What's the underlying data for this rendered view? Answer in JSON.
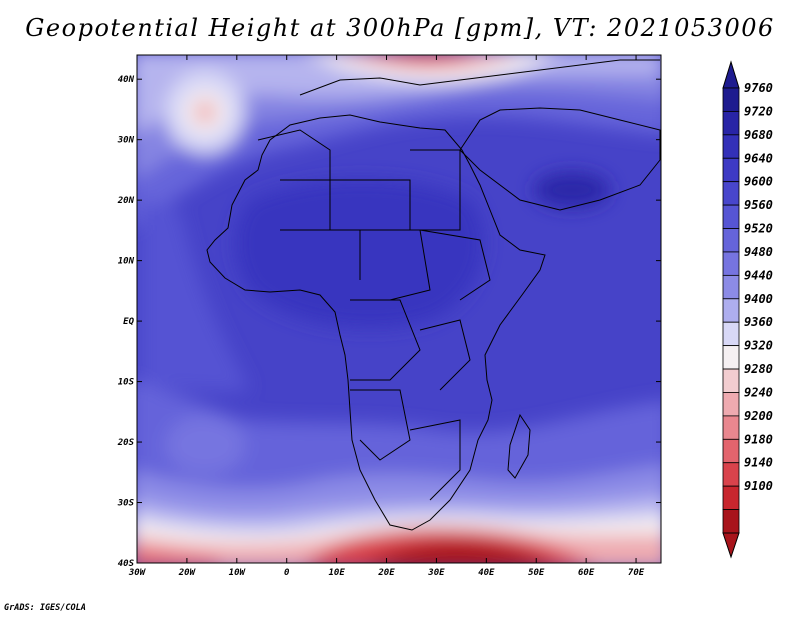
{
  "title": "Geopotential Height at 300hPa [gpm], VT: 2021053006",
  "credit": "GrADS: IGES/COLA",
  "map": {
    "lon_ticks": [
      "30W",
      "20W",
      "10W",
      "0",
      "10E",
      "20E",
      "30E",
      "40E",
      "50E",
      "60E",
      "70E"
    ],
    "lat_ticks": [
      "40N",
      "30N",
      "20N",
      "10N",
      "EQ",
      "10S",
      "20S",
      "30S",
      "40S"
    ],
    "lon_range": [
      -30,
      75
    ],
    "lat_range": [
      -40,
      44
    ]
  },
  "legend": {
    "labels": [
      "9760",
      "9720",
      "9680",
      "9640",
      "9600",
      "9560",
      "9520",
      "9480",
      "9440",
      "9400",
      "9360",
      "9320",
      "9280",
      "9240",
      "9200",
      "9180",
      "9140",
      "9100"
    ],
    "colors": [
      "#1e1b8f",
      "#2824a6",
      "#3330b8",
      "#3d3ac4",
      "#4846cc",
      "#5655d4",
      "#6564da",
      "#7674e0",
      "#8c8be6",
      "#aeaeee",
      "#d8d8f6",
      "#f5f0f2",
      "#f2cdd0",
      "#eeaab0",
      "#e9878f",
      "#e3646d",
      "#d9434c",
      "#c8262e",
      "#a8141b"
    ]
  },
  "chart_data": {
    "type": "map",
    "title": "Geopotential Height at 300hPa [gpm], VT: 2021053006",
    "variable": "Geopotential Height",
    "level": "300hPa",
    "units": "gpm",
    "valid_time": "2021053006",
    "contour_levels": [
      9100,
      9140,
      9180,
      9200,
      9240,
      9280,
      9320,
      9360,
      9400,
      9440,
      9480,
      9520,
      9560,
      9600,
      9640,
      9680,
      9720,
      9760
    ],
    "lon_range": [
      -30,
      75
    ],
    "lat_range": [
      -40,
      44
    ]
  }
}
